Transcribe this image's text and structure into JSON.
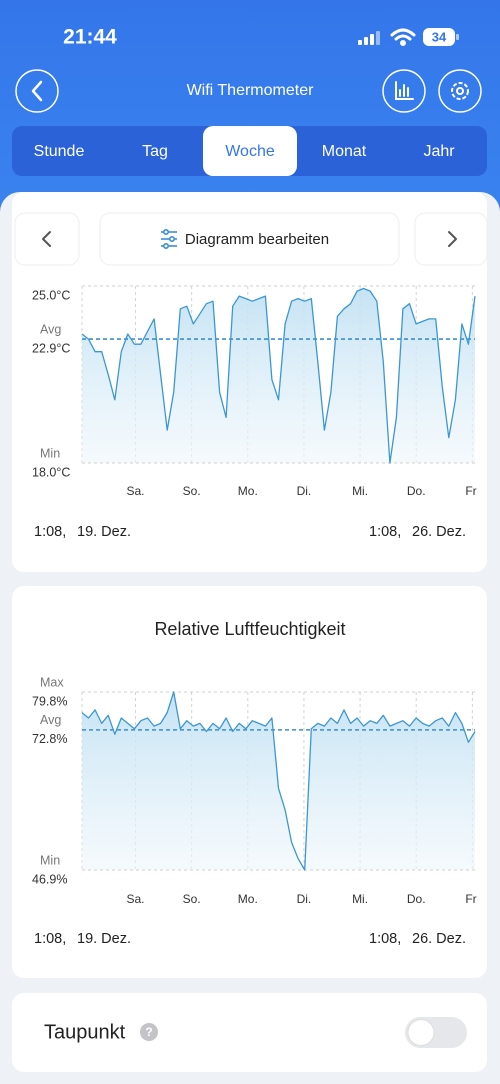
{
  "status_bar": {
    "time": "21:44",
    "battery": "34"
  },
  "header": {
    "title": "Wifi Thermometer"
  },
  "tabs": {
    "items": [
      "Stunde",
      "Tag",
      "Woche",
      "Monat",
      "Jahr"
    ],
    "selected": 2
  },
  "toolbar": {
    "edit": "Diagramm bearbeiten"
  },
  "charts": [
    {
      "type": "line",
      "color": "#3b97d3",
      "ylim": [
        18.0,
        25.0
      ],
      "yticks": [
        {
          "value": 25.0,
          "label": "25.0°C"
        },
        {
          "value": 22.9,
          "label": "22.9°C",
          "name": "Avg"
        },
        {
          "value": 18.0,
          "label": "18.0°C",
          "name": "Min"
        }
      ],
      "categories": [
        "Sa.",
        "So.",
        "Mo.",
        "Di.",
        "Mi.",
        "Do.",
        "Fr"
      ],
      "values": [
        23.1,
        22.9,
        22.4,
        22.4,
        21.5,
        20.5,
        22.4,
        23.1,
        22.7,
        22.7,
        23.2,
        23.7,
        21.5,
        19.3,
        20.8,
        24.1,
        24.2,
        23.5,
        23.9,
        24.3,
        24.4,
        20.8,
        19.8,
        24.2,
        24.6,
        24.5,
        24.4,
        24.5,
        24.6,
        21.3,
        20.5,
        23.5,
        24.4,
        24.5,
        24.4,
        24.5,
        22.0,
        19.3,
        20.8,
        23.8,
        24.1,
        24.3,
        24.8,
        24.9,
        24.8,
        24.4,
        22.0,
        18.0,
        19.8,
        24.1,
        24.3,
        23.5,
        23.6,
        23.7,
        23.7,
        21.0,
        19.0,
        20.5,
        23.5,
        22.7,
        24.6
      ],
      "start": {
        "time": "1:08,",
        "date": "19. Dez."
      },
      "end": {
        "time": "1:08,",
        "date": "26. Dez."
      }
    },
    {
      "type": "line",
      "title": "Relative Luftfeuchtigkeit",
      "color": "#3b97d3",
      "ylim": [
        46.9,
        79.8
      ],
      "yticks": [
        {
          "value": 79.8,
          "label": "79.8%",
          "name": "Max"
        },
        {
          "value": 72.8,
          "label": "72.8%",
          "name": "Avg"
        },
        {
          "value": 46.9,
          "label": "46.9%",
          "name": "Min"
        }
      ],
      "categories": [
        "Sa.",
        "So.",
        "Mo.",
        "Di.",
        "Mi.",
        "Do.",
        "Fr"
      ],
      "values": [
        76.0,
        75.0,
        76.5,
        74.0,
        75.5,
        72.0,
        75.0,
        74.0,
        73.0,
        74.5,
        75.0,
        73.5,
        74.0,
        76.0,
        79.8,
        73.0,
        74.5,
        73.5,
        74.0,
        72.5,
        74.0,
        73.0,
        75.0,
        72.5,
        74.0,
        73.0,
        74.5,
        74.0,
        73.5,
        75.0,
        62.0,
        58.0,
        52.0,
        49.0,
        46.9,
        73.0,
        74.0,
        73.5,
        75.0,
        74.0,
        76.5,
        74.0,
        75.0,
        73.5,
        74.5,
        74.0,
        75.5,
        73.5,
        74.0,
        74.5,
        73.5,
        75.0,
        74.0,
        73.5,
        74.5,
        75.0,
        73.5,
        76.0,
        74.0,
        70.5,
        72.5
      ],
      "start": {
        "time": "1:08,",
        "date": "19. Dez."
      },
      "end": {
        "time": "1:08,",
        "date": "26. Dez."
      }
    }
  ],
  "dew_point": {
    "label": "Taupunkt",
    "help": "?"
  }
}
